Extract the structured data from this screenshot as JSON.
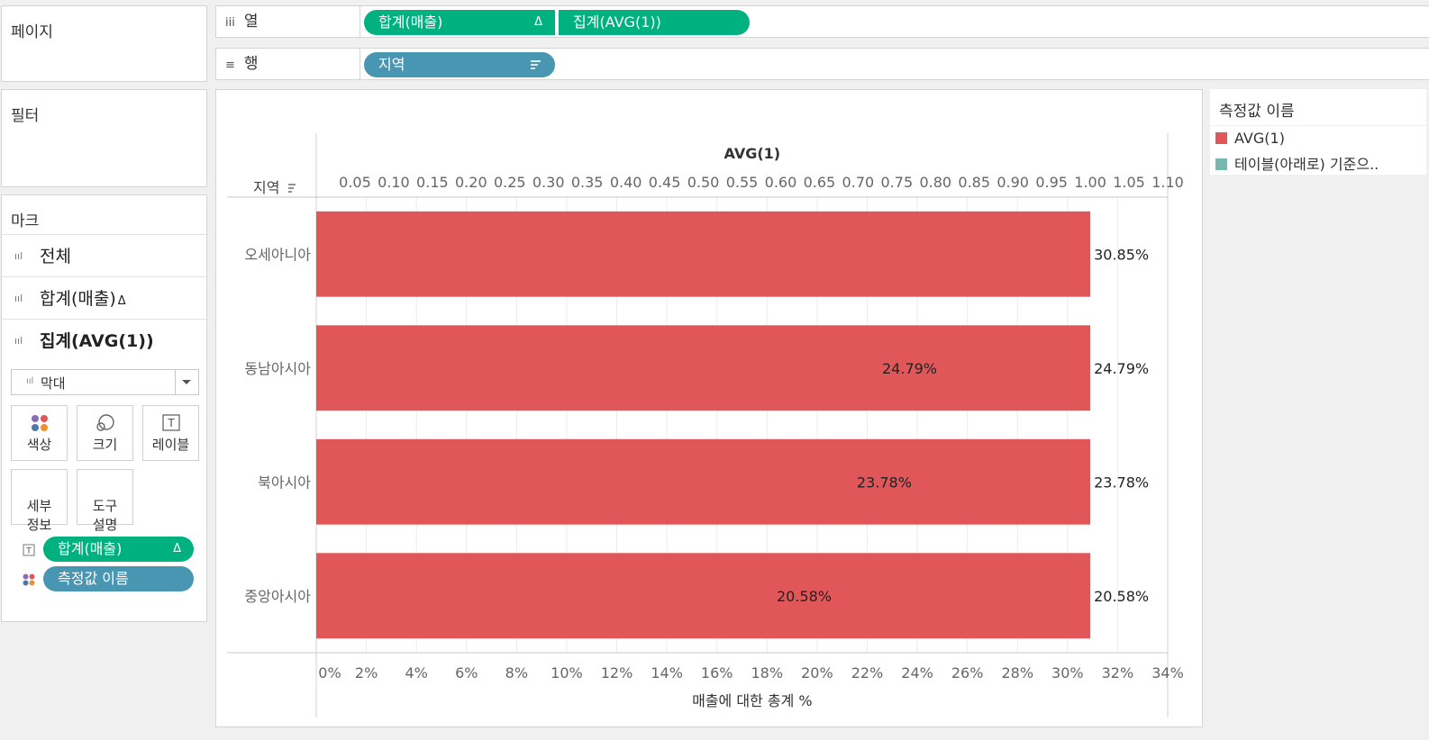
{
  "pages_panel": {
    "title": "페이지"
  },
  "filters_panel": {
    "title": "필터"
  },
  "marks_panel": {
    "title": "마크",
    "rows": [
      {
        "label": "전체",
        "bold": false
      },
      {
        "label": "합계(매출)",
        "suffix": "Δ",
        "bold": false
      },
      {
        "label": "집계(AVG(1))",
        "bold": true
      }
    ],
    "mark_type": "막대",
    "buttons": [
      "색상",
      "크기",
      "레이블",
      "세부\n정보",
      "도구\n설명"
    ],
    "pills": [
      {
        "label": "합계(매출)",
        "suffix": "Δ",
        "color": "#00b180",
        "icon": "label-icon"
      },
      {
        "label": "측정값 이름",
        "color": "#4996b2",
        "icon": "color-icon"
      }
    ]
  },
  "columns_shelf": {
    "label": "열",
    "icon": "iii",
    "pills": [
      {
        "label": "합계(매출)",
        "suffix": "Δ",
        "color": "#00b180"
      },
      {
        "label": "집계(AVG(1))",
        "color": "#00b180"
      }
    ]
  },
  "rows_shelf": {
    "label": "행",
    "icon": "≡",
    "pills": [
      {
        "label": "지역",
        "color": "#4996b2"
      }
    ]
  },
  "legend": {
    "title": "측정값 이름",
    "items": [
      {
        "label": "AVG(1)",
        "color": "#e15759"
      },
      {
        "label": "테이블(아래로) 기준으..",
        "color": "#76b7b2"
      }
    ]
  },
  "chart_data": {
    "type": "bar",
    "orientation": "horizontal",
    "row_header": "지역",
    "categories": [
      "오세아니아",
      "동남아시아",
      "북아시아",
      "중앙아시아"
    ],
    "top_axis": {
      "title": "AVG(1)",
      "range": [
        0,
        1.1
      ],
      "ticks": [
        "0.05",
        "0.10",
        "0.15",
        "0.20",
        "0.25",
        "0.30",
        "0.35",
        "0.40",
        "0.45",
        "0.50",
        "0.55",
        "0.60",
        "0.65",
        "0.70",
        "0.75",
        "0.80",
        "0.85",
        "0.90",
        "0.95",
        "1.00",
        "1.05",
        "1.10"
      ]
    },
    "bottom_axis": {
      "title": "매출에 대한 총계 %",
      "range": [
        0,
        34
      ],
      "ticks": [
        "0%",
        "2%",
        "4%",
        "6%",
        "8%",
        "10%",
        "12%",
        "14%",
        "16%",
        "18%",
        "20%",
        "22%",
        "24%",
        "26%",
        "28%",
        "30%",
        "32%",
        "34%"
      ]
    },
    "series": [
      {
        "name": "AVG(1)",
        "color": "#e15759",
        "values": [
          1.0,
          1.0,
          1.0,
          1.0
        ]
      },
      {
        "name": "매출에 대한 총계 %",
        "values": [
          30.85,
          24.79,
          23.78,
          20.58
        ]
      }
    ],
    "inner_labels": [
      "",
      "24.79%",
      "23.78%",
      "20.58%"
    ],
    "end_labels": [
      "30.85%",
      "24.79%",
      "23.78%",
      "20.58%"
    ],
    "grid": true
  }
}
